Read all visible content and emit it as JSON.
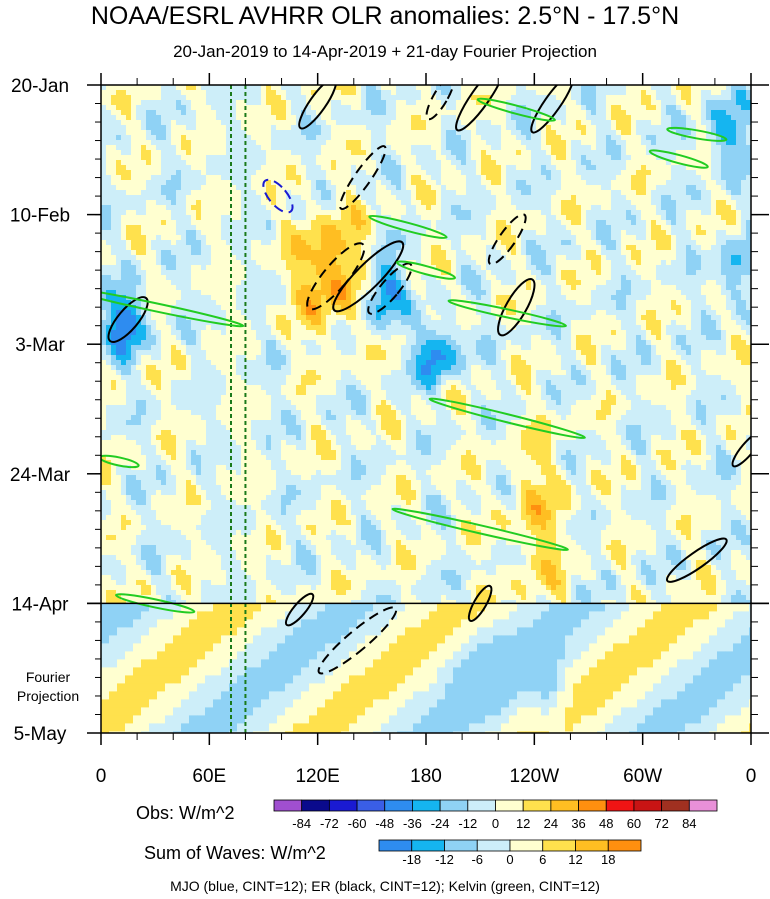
{
  "chart_data": {
    "type": "heatmap",
    "title": "NOAA/ESRL AVHRR OLR anomalies: 2.5°N - 17.5°N",
    "subtitle": "20-Jan-2019 to 14-Apr-2019 + 21-day Fourier Projection",
    "x_ticks": [
      {
        "label": "0",
        "lon": 0
      },
      {
        "label": "60E",
        "lon": 60
      },
      {
        "label": "120E",
        "lon": 120
      },
      {
        "label": "180",
        "lon": 180
      },
      {
        "label": "120W",
        "lon": 240
      },
      {
        "label": "60W",
        "lon": 300
      },
      {
        "label": "0",
        "lon": 360
      }
    ],
    "x_range": [
      0,
      360
    ],
    "y_ticks": [
      {
        "label": "20-Jan",
        "day": 0
      },
      {
        "label": "10-Feb",
        "day": 21
      },
      {
        "label": "3-Mar",
        "day": 42
      },
      {
        "label": "24-Mar",
        "day": 63
      },
      {
        "label": "14-Apr",
        "day": 84
      },
      {
        "label": "5-May",
        "day": 105
      }
    ],
    "y_range_days": [
      0,
      105
    ],
    "observation_end_day": 84,
    "fourier_label_lines": [
      "Fourier",
      "Projection"
    ],
    "reference_lines_lon": [
      72,
      80
    ],
    "obs_legend": {
      "label": "Obs: W/m^2",
      "levels": [
        "-84",
        "-72",
        "-60",
        "-48",
        "-36",
        "-24",
        "-12",
        "0",
        "12",
        "24",
        "36",
        "48",
        "60",
        "72",
        "84"
      ],
      "colors": [
        "#a04fd0",
        "#0a0a8c",
        "#1a1ad2",
        "#3a5ee6",
        "#2e8cf0",
        "#15b5f0",
        "#8fd2f5",
        "#cdeef9",
        "#ffffd0",
        "#ffe14d",
        "#ffbe22",
        "#ff8f0f",
        "#f01414",
        "#c81414",
        "#a03020",
        "#e890d8"
      ]
    },
    "waves_legend": {
      "label": "Sum of Waves: W/m^2",
      "levels": [
        "-18",
        "-12",
        "-6",
        "0",
        "6",
        "12",
        "18"
      ],
      "colors": [
        "#2e8cf0",
        "#15b5f0",
        "#8fd2f5",
        "#cdeef9",
        "#ffffd0",
        "#ffe14d",
        "#ffbe22",
        "#ff8f0f"
      ]
    },
    "contour_legend": "MJO (blue, CINT=12); ER (black, CINT=12); Kelvin (green, CINT=12)",
    "series": [
      {
        "name": "MJO",
        "color": "#1a1ad2",
        "cint": 12
      },
      {
        "name": "ER",
        "color": "#000000",
        "cint": 12
      },
      {
        "name": "Kelvin",
        "color": "#22cc22",
        "cint": 12
      }
    ]
  }
}
